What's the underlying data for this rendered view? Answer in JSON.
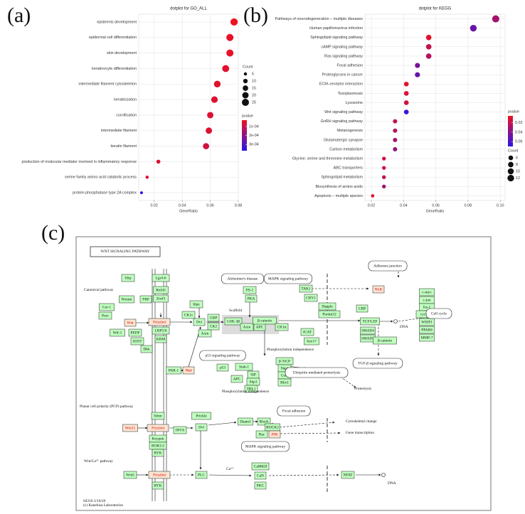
{
  "panel_labels": [
    "(a)",
    "(b)",
    "(c)"
  ],
  "chart_data": [
    {
      "type": "dot",
      "title": "dotplot for GO_ALL",
      "x_label": "GeneRatio",
      "categories": [
        "epidermis development",
        "epidermal cell differentiation",
        "skin development",
        "keratinocyte differentiation",
        "intermediate filament cytoskeleton",
        "keratinization",
        "cornification",
        "intermediate filament",
        "keratin filament",
        "production of molecular mediator involved in inflammatory response",
        "serine family amino acid catabolic process",
        "protein phosphatase type 2A complex"
      ],
      "values": [
        0.077,
        0.074,
        0.074,
        0.071,
        0.065,
        0.063,
        0.06,
        0.059,
        0.057,
        0.023,
        0.015,
        0.011
      ],
      "counts": [
        26,
        25,
        25,
        24,
        22,
        21,
        20,
        20,
        19,
        8,
        5,
        4
      ],
      "pvalues": [
        3e-05,
        4e-05,
        4e-05,
        5e-05,
        5e-05,
        6e-05,
        6e-05,
        6e-05,
        8e-05,
        6e-05,
        5e-05,
        0.00037
      ],
      "xlim": [
        0.009,
        0.08
      ],
      "xticks": [
        0.02,
        0.04,
        0.06,
        0.08
      ],
      "grid": true,
      "size_legend": {
        "title": "Count",
        "values": [
          5,
          10,
          15,
          20,
          25
        ]
      },
      "color_legend": {
        "title": "pvalue",
        "low_color": "#ee1122",
        "high_color": "#2a14e8",
        "lim": [
          3e-05,
          0.00037
        ],
        "ticks": [
          {
            "value": 0.0001,
            "label": "1e-04"
          },
          {
            "value": 0.0002,
            "label": "2e-04"
          },
          {
            "value": 0.0003,
            "label": "3e-04"
          }
        ]
      }
    },
    {
      "type": "dot",
      "title": "dotplot for KEGG",
      "x_label": "GeneRatio",
      "categories": [
        "Pathways of neurodegeneration – multiple diseases",
        "Human papillomavirus infection",
        "Sphingolipid signaling pathway",
        "cAMP signaling pathway",
        "Ras signaling pathway",
        "Focal adhesion",
        "Proteoglycans in cancer",
        "ECM–receptor interaction",
        "Toxoplasmosis",
        "Lysosome",
        "Wnt signaling pathway",
        "GnRH signaling pathway",
        "Melanogenesis",
        "Glutamatergic synapse",
        "Carbon metabolism",
        "Glycine, serine and threonine metabolism",
        "ABC transporters",
        "Sphingolipid metabolism",
        "Biosynthesis of amino acids",
        "Apoptosis – multiple species"
      ],
      "values": [
        0.0972,
        0.0833,
        0.0556,
        0.0556,
        0.0556,
        0.0486,
        0.0486,
        0.0417,
        0.0417,
        0.0417,
        0.0417,
        0.0347,
        0.0347,
        0.0347,
        0.0347,
        0.0278,
        0.0278,
        0.0278,
        0.0278,
        0.0208
      ],
      "counts": [
        14,
        12,
        8,
        8,
        8,
        7,
        7,
        6,
        6,
        6,
        6,
        5,
        5,
        5,
        5,
        4,
        4,
        4,
        4,
        3
      ],
      "pvalues": [
        0.03,
        0.05,
        0.01,
        0.02,
        0.025,
        0.045,
        0.05,
        0.01,
        0.012,
        0.015,
        0.065,
        0.02,
        0.025,
        0.03,
        0.035,
        0.015,
        0.015,
        0.02,
        0.03,
        0.01
      ],
      "xlim": [
        0.016,
        0.103
      ],
      "xticks": [
        0.02,
        0.04,
        0.06,
        0.08,
        {
          "value": 0.1,
          "label": "0.10"
        }
      ],
      "grid": true,
      "size_legend": {
        "title": "Count",
        "values": [
          6,
          8,
          10,
          12
        ]
      },
      "color_legend": {
        "title": "pvalue",
        "low_color": "#ee1122",
        "high_color": "#2a14e8",
        "lim": [
          0.006,
          0.07
        ],
        "ticks": [
          0.02,
          0.04,
          0.06
        ]
      }
    }
  ],
  "diagram": {
    "title": "WNT SIGNALING PATHWAY",
    "nodes": [
      {
        "label": "Sfrp",
        "highlight": false
      },
      {
        "label": "Lgr4-6",
        "highlight": false
      },
      {
        "label": "Rnf43",
        "highlight": false
      },
      {
        "label": "Znrf3",
        "highlight": false
      },
      {
        "label": "Notum",
        "highlight": false
      },
      {
        "label": "FRP",
        "highlight": false
      },
      {
        "label": "Cer-1",
        "highlight": false
      },
      {
        "label": "Porc",
        "highlight": false
      },
      {
        "label": "Wnt",
        "highlight": true
      },
      {
        "label": "Frizzled",
        "highlight": true
      },
      {
        "label": "Wif-1",
        "highlight": false
      },
      {
        "label": "PEDF",
        "highlight": false
      },
      {
        "label": "SOST",
        "highlight": false
      },
      {
        "label": "Dkk",
        "highlight": false
      },
      {
        "label": "LRP5/6",
        "highlight": false
      },
      {
        "label": "KRM",
        "highlight": false
      },
      {
        "label": "CK1ε",
        "highlight": false
      },
      {
        "label": "Dvl",
        "highlight": false
      },
      {
        "label": "GBP",
        "highlight": false
      },
      {
        "label": "CK2",
        "highlight": false
      },
      {
        "label": "Axin",
        "highlight": false
      },
      {
        "label": "Idax",
        "highlight": false
      },
      {
        "label": "GSK-3β",
        "highlight": false
      },
      {
        "label": "Axin",
        "highlight": false
      },
      {
        "label": "APC",
        "highlight": false
      },
      {
        "label": "β-catenin",
        "highlight": false
      },
      {
        "label": "CK1α",
        "highlight": false
      },
      {
        "label": "PS-1",
        "highlight": false
      },
      {
        "label": "PKA",
        "highlight": false
      },
      {
        "label": "TAK1",
        "highlight": false
      },
      {
        "label": "NLK",
        "highlight": true
      },
      {
        "label": "CBY1",
        "highlight": false
      },
      {
        "label": "Dapple",
        "highlight": false
      },
      {
        "label": "Pontin52",
        "highlight": false
      },
      {
        "label": "ICAT",
        "highlight": false
      },
      {
        "label": "Sox17",
        "highlight": false
      },
      {
        "label": "CBP",
        "highlight": false
      },
      {
        "label": "TCF/LEF",
        "highlight": false
      },
      {
        "label": "SMAD4",
        "highlight": false
      },
      {
        "label": "SMAD3",
        "highlight": false
      },
      {
        "label": "β-catenin",
        "highlight": false
      },
      {
        "label": "c-myc",
        "highlight": false
      },
      {
        "label": "c-jun",
        "highlight": false
      },
      {
        "label": "fra-1",
        "highlight": false
      },
      {
        "label": "cyclin D",
        "highlight": false
      },
      {
        "label": "WISP1",
        "highlight": false
      },
      {
        "label": "PPARδ",
        "highlight": false
      },
      {
        "label": "MMP-7",
        "highlight": false
      },
      {
        "label": "β-TrCP",
        "highlight": false
      },
      {
        "label": "Skp1",
        "highlight": false
      },
      {
        "label": "Cul1",
        "highlight": false
      },
      {
        "label": "Rbx1",
        "highlight": false
      },
      {
        "label": "Siah-1",
        "highlight": false
      },
      {
        "label": "SIP",
        "highlight": false
      },
      {
        "label": "Skp1",
        "highlight": false
      },
      {
        "label": "APC",
        "highlight": false
      },
      {
        "label": "TBL1",
        "highlight": false
      },
      {
        "label": "p53",
        "highlight": false
      },
      {
        "label": "PAR-1",
        "highlight": false
      },
      {
        "label": "Nkd",
        "highlight": true
      },
      {
        "label": "Stbm",
        "highlight": false
      },
      {
        "label": "Prickle",
        "highlight": false
      },
      {
        "label": "Wnt11",
        "highlight": true
      },
      {
        "label": "Frizzled",
        "highlight": true
      },
      {
        "label": "Dvl",
        "highlight": false
      },
      {
        "label": "INVS",
        "highlight": false
      },
      {
        "label": "Knypek",
        "highlight": false
      },
      {
        "label": "ROR1/2",
        "highlight": false
      },
      {
        "label": "RYK",
        "highlight": false
      },
      {
        "label": "Daam1",
        "highlight": false
      },
      {
        "label": "RhoA",
        "highlight": false
      },
      {
        "label": "ROCK2",
        "highlight": false
      },
      {
        "label": "Rac",
        "highlight": false
      },
      {
        "label": "JNK",
        "highlight": true
      },
      {
        "label": "Wnt5",
        "highlight": false
      },
      {
        "label": "Frizzled",
        "highlight": true
      },
      {
        "label": "RYK",
        "highlight": false
      },
      {
        "label": "PLC",
        "highlight": false
      },
      {
        "label": "CaMKII",
        "highlight": false
      },
      {
        "label": "CaN",
        "highlight": false
      },
      {
        "label": "PKC",
        "highlight": false
      },
      {
        "label": "NFAT",
        "highlight": false
      }
    ],
    "maps": [
      "Alzheimer's disease",
      "MAPK signaling pathway",
      "Adherens junction",
      "Cell cycle",
      "TGF-β signaling pathway",
      "p53 signaling pathway",
      "Ubiquitin mediated proteolysis",
      "Focal adhesion",
      "MAPK signaling pathway"
    ],
    "texts": [
      "Canonical pathway",
      "Planar cell polarity (PCP) pathway",
      "Wnt/Ca²⁺ pathway",
      "Scaffold",
      "Phosphorylation independence",
      "Phosphorylation independence",
      "DNA",
      "DNA",
      "Proteolysis",
      "Cytoskeletal change",
      "Gene transcription",
      "Ca²⁺"
    ],
    "footer": [
      "04310 2/16/20",
      "(c) Kanehisa Laboratories"
    ]
  }
}
